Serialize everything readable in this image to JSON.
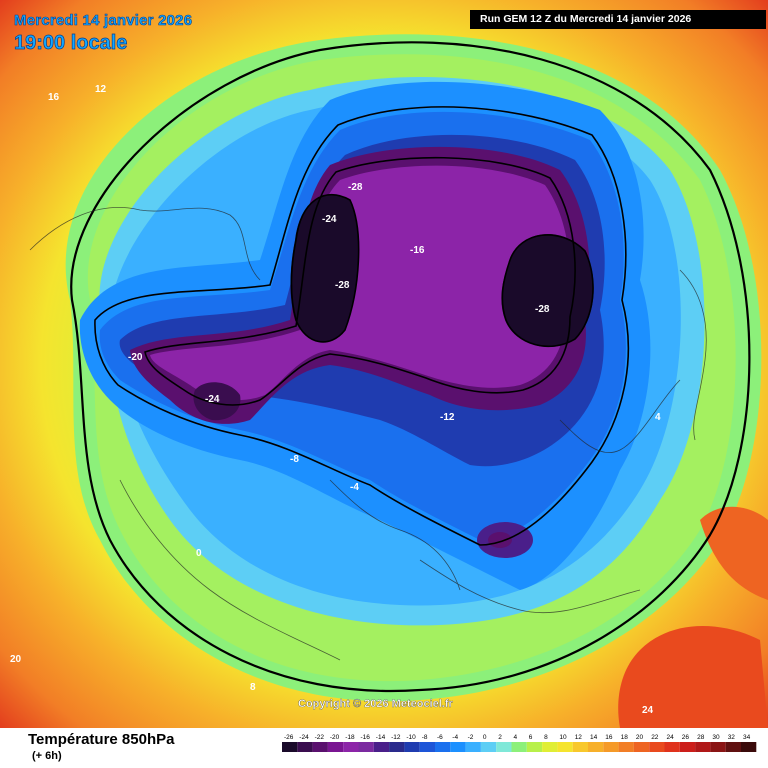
{
  "header": {
    "date": "Mercredi 14 janvier 2026",
    "time": "19:00 locale",
    "run": "Run GEM 12 Z du Mercredi 14 janvier 2026"
  },
  "footer": {
    "variable": "Température 850hPa",
    "step": "(+ 6h)",
    "copyright": "Copyright © 2026 Meteociel.fr"
  },
  "legend": {
    "values": [
      "-26",
      "-24",
      "-22",
      "-20",
      "-18",
      "-16",
      "-14",
      "-12",
      "-10",
      "-8",
      "-6",
      "-4",
      "-2",
      "0",
      "2",
      "4",
      "6",
      "8",
      "10",
      "12",
      "14",
      "16",
      "18",
      "20",
      "22",
      "24",
      "26",
      "28",
      "30",
      "32",
      "34"
    ],
    "colors": [
      "#1a0a2a",
      "#3a0d4f",
      "#5a106e",
      "#7a1592",
      "#8c24a8",
      "#7b2aa0",
      "#4a1f8a",
      "#2a2a8c",
      "#1f3cb0",
      "#1d55d8",
      "#1a70ee",
      "#1c90ff",
      "#3ab0ff",
      "#5dcef5",
      "#7fe8d8",
      "#8cf07a",
      "#b8f04a",
      "#e0ee35",
      "#f5e42e",
      "#f8c82c",
      "#f7b02a",
      "#f59a28",
      "#f27e26",
      "#ee6422",
      "#e94a1e",
      "#e0321c",
      "#cc1e1a",
      "#b01818",
      "#8a1414",
      "#601010",
      "#3a0a0a"
    ]
  },
  "labels": [
    {
      "t": "-28"
    },
    {
      "t": "-24"
    },
    {
      "t": "-28"
    },
    {
      "t": "-28"
    },
    {
      "t": "-24"
    },
    {
      "t": "-20"
    },
    {
      "t": "-16"
    },
    {
      "t": "-12"
    },
    {
      "t": "-8"
    },
    {
      "t": "-4"
    },
    {
      "t": "0"
    },
    {
      "t": "4"
    },
    {
      "t": "8"
    },
    {
      "t": "12"
    },
    {
      "t": "16"
    },
    {
      "t": "20"
    },
    {
      "t": "24"
    }
  ]
}
